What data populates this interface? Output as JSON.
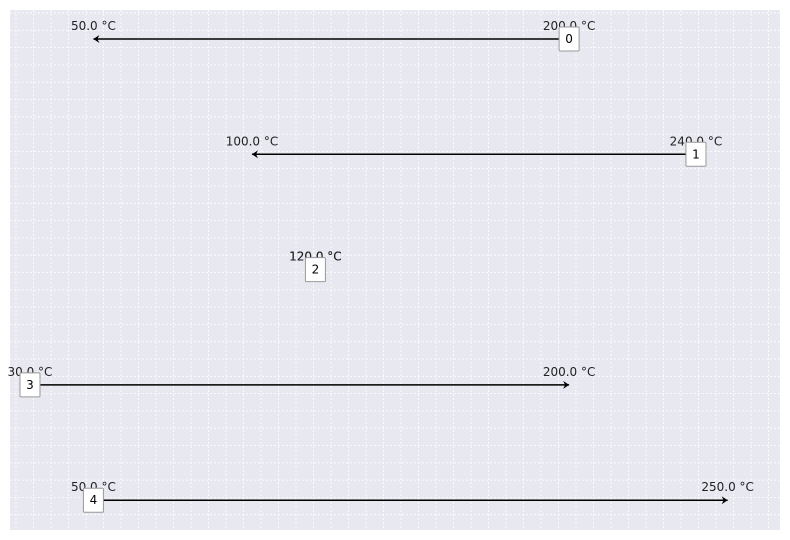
{
  "chart_data": {
    "type": "stream-temperature-diagram",
    "title": "",
    "xlabel": "",
    "ylabel": "",
    "unit": "°C",
    "grid": true,
    "xlim": [
      23.7,
      266.5
    ],
    "streams": [
      {
        "id": "0",
        "t_supply": 200.0,
        "t_target": 50.0,
        "supply_label": "200.0 °C",
        "target_label": "50.0 °C"
      },
      {
        "id": "1",
        "t_supply": 240.0,
        "t_target": 100.0,
        "supply_label": "240.0 °C",
        "target_label": "100.0 °C"
      },
      {
        "id": "2",
        "t_supply": 120.0,
        "t_target": 120.0,
        "supply_label": "120.0 °C",
        "target_label": "120.0 °C"
      },
      {
        "id": "3",
        "t_supply": 30.0,
        "t_target": 200.0,
        "supply_label": "30.0 °C",
        "target_label": "200.0 °C"
      },
      {
        "id": "4",
        "t_supply": 50.0,
        "t_target": 250.0,
        "supply_label": "50.0 °C",
        "target_label": "250.0 °C"
      }
    ]
  }
}
